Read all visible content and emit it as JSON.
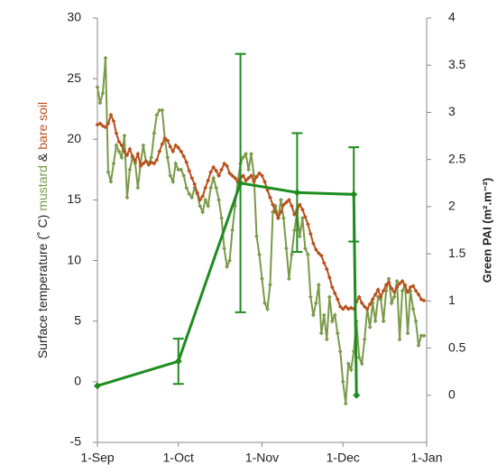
{
  "chart_data": {
    "type": "line",
    "ylabel": "Surface temperature (˚ C)",
    "ylabel_joiner": "&",
    "y2label": "Green PAI (m².m⁻²)",
    "y2label_color": "#1e8c1e",
    "xlim": [
      0,
      122
    ],
    "xticks": [
      {
        "value": 0,
        "label": "1-Sep"
      },
      {
        "value": 30,
        "label": "1-Oct"
      },
      {
        "value": 61,
        "label": "1-Nov"
      },
      {
        "value": 91,
        "label": "1-Dec"
      },
      {
        "value": 122,
        "label": "1-Jan"
      }
    ],
    "ylim": [
      -5,
      30
    ],
    "yticks": [
      -5,
      0,
      5,
      10,
      15,
      20,
      25,
      30
    ],
    "y2lim": [
      -0.5,
      4
    ],
    "y2ticks": [
      0,
      0.5,
      1,
      1.5,
      2,
      2.5,
      3,
      3.5,
      4
    ],
    "series": [
      {
        "name": "mustard",
        "color": "#7a9a48",
        "x": [
          0,
          1,
          2,
          3,
          4,
          5,
          6,
          7,
          8,
          9,
          10,
          11,
          12,
          13,
          14,
          15,
          16,
          17,
          18,
          19,
          20,
          21,
          22,
          23,
          24,
          25,
          26,
          27,
          28,
          29,
          30,
          31,
          32,
          33,
          34,
          35,
          36,
          37,
          38,
          39,
          40,
          41,
          42,
          43,
          44,
          45,
          46,
          47,
          48,
          49,
          50,
          51,
          52,
          53,
          54,
          55,
          56,
          57,
          58,
          59,
          60,
          61,
          62,
          63,
          64,
          65,
          66,
          67,
          68,
          69,
          70,
          71,
          72,
          73,
          74,
          75,
          76,
          77,
          78,
          79,
          80,
          81,
          82,
          83,
          84,
          85,
          86,
          87,
          88,
          89,
          90,
          91,
          92,
          93,
          94,
          95,
          96,
          97,
          98,
          99,
          100,
          101,
          102,
          103,
          104,
          105,
          106,
          107,
          108,
          109,
          110,
          111,
          112,
          113,
          114,
          115,
          116,
          117,
          118,
          119,
          120,
          121
        ],
        "values": [
          24.3,
          23.0,
          23.8,
          26.7,
          17.3,
          16.5,
          18.0,
          19.5,
          19.0,
          18.5,
          20.3,
          15.2,
          17.5,
          18.5,
          18.0,
          16.0,
          18.0,
          19.5,
          18.2,
          18.0,
          18.5,
          20.5,
          22.0,
          22.4,
          22.4,
          20.0,
          18.5,
          17.0,
          16.5,
          18.0,
          17.5,
          17.5,
          17.0,
          16.0,
          15.5,
          15.2,
          16.0,
          15.5,
          14.5,
          14.0,
          15.0,
          14.5,
          16.0,
          16.8,
          16.0,
          15.0,
          13.5,
          11.0,
          9.5,
          10.0,
          12.5,
          14.5,
          16.5,
          18.0,
          18.5,
          18.8,
          17.5,
          18.8,
          17.0,
          12.0,
          10.5,
          8.5,
          6.5,
          6.0,
          8.0,
          14.0,
          14.5,
          13.5,
          15.0,
          13.5,
          11.0,
          8.5,
          10.5,
          12.5,
          14.0,
          12.0,
          13.5,
          11.0,
          10.5,
          7.0,
          5.5,
          6.5,
          8.0,
          4.0,
          5.5,
          3.5,
          7.0,
          5.0,
          5.5,
          4.0,
          2.5,
          0.0,
          -1.8,
          1.5,
          1.0,
          2.5,
          5.0,
          2.0,
          1.5,
          3.5,
          6.0,
          4.5,
          6.5,
          5.0,
          7.0,
          6.8,
          5.0,
          7.5,
          8.5,
          6.5,
          7.0,
          8.3,
          3.5,
          7.5,
          8.0,
          4.0,
          7.5,
          6.0,
          5.0,
          3.0,
          3.8,
          3.8
        ]
      },
      {
        "name": "bare soil",
        "color": "#b8511c",
        "x": [
          0,
          1,
          2,
          3,
          4,
          5,
          6,
          7,
          8,
          9,
          10,
          11,
          12,
          13,
          14,
          15,
          16,
          17,
          18,
          19,
          20,
          21,
          22,
          23,
          24,
          25,
          26,
          27,
          28,
          29,
          30,
          31,
          32,
          33,
          34,
          35,
          36,
          37,
          38,
          39,
          40,
          41,
          42,
          43,
          44,
          45,
          46,
          47,
          48,
          49,
          50,
          51,
          52,
          53,
          54,
          55,
          56,
          57,
          58,
          59,
          60,
          61,
          62,
          63,
          64,
          65,
          66,
          67,
          68,
          69,
          70,
          71,
          72,
          73,
          74,
          75,
          76,
          77,
          78,
          79,
          80,
          81,
          82,
          83,
          84,
          85,
          86,
          87,
          88,
          89,
          90,
          91,
          92,
          93,
          94,
          95,
          96,
          97,
          98,
          99,
          100,
          101,
          102,
          103,
          104,
          105,
          106,
          107,
          108,
          109,
          110,
          111,
          112,
          113,
          114,
          115,
          116,
          117,
          118,
          119,
          120,
          121
        ],
        "values": [
          21.2,
          21.3,
          21.1,
          21.0,
          21.3,
          22.0,
          21.5,
          20.5,
          19.8,
          19.5,
          19.0,
          18.7,
          19.2,
          18.6,
          18.2,
          18.8,
          17.8,
          18.0,
          18.2,
          17.9,
          18.1,
          18.0,
          18.3,
          19.0,
          19.6,
          20.1,
          19.9,
          19.4,
          19.0,
          19.5,
          19.3,
          19.0,
          18.6,
          18.1,
          17.4,
          16.8,
          16.3,
          15.6,
          15.0,
          15.3,
          16.0,
          16.6,
          17.3,
          17.7,
          17.4,
          17.0,
          17.5,
          18.0,
          17.8,
          17.2,
          17.0,
          16.8,
          16.5,
          16.8,
          17.0,
          16.6,
          16.8,
          17.0,
          16.5,
          16.9,
          17.2,
          17.0,
          16.5,
          15.8,
          15.2,
          14.6,
          14.0,
          13.5,
          14.0,
          14.6,
          14.8,
          15.0,
          14.5,
          13.8,
          14.2,
          14.6,
          14.2,
          13.6,
          13.0,
          12.2,
          11.4,
          10.9,
          10.6,
          10.4,
          9.8,
          9.3,
          8.6,
          7.8,
          7.3,
          6.8,
          6.2,
          6.0,
          6.2,
          6.0,
          6.1,
          6.0,
          6.6,
          7.0,
          6.5,
          6.2,
          6.0,
          6.4,
          6.8,
          7.2,
          7.6,
          7.0,
          7.5,
          8.0,
          8.2,
          7.7,
          7.4,
          7.8,
          8.1,
          8.3,
          7.9,
          7.4,
          7.8,
          7.9,
          7.5,
          7.2,
          6.8,
          6.7
        ]
      },
      {
        "name": "Green PAI",
        "color": "#1e8c1e",
        "axis": "y2",
        "x": [
          0,
          30,
          53,
          74,
          95,
          96
        ],
        "values": [
          0.1,
          0.36,
          2.25,
          2.15,
          2.13,
          0.0
        ],
        "errors": [
          null,
          0.24,
          1.37,
          0.63,
          0.5,
          null
        ]
      }
    ]
  }
}
